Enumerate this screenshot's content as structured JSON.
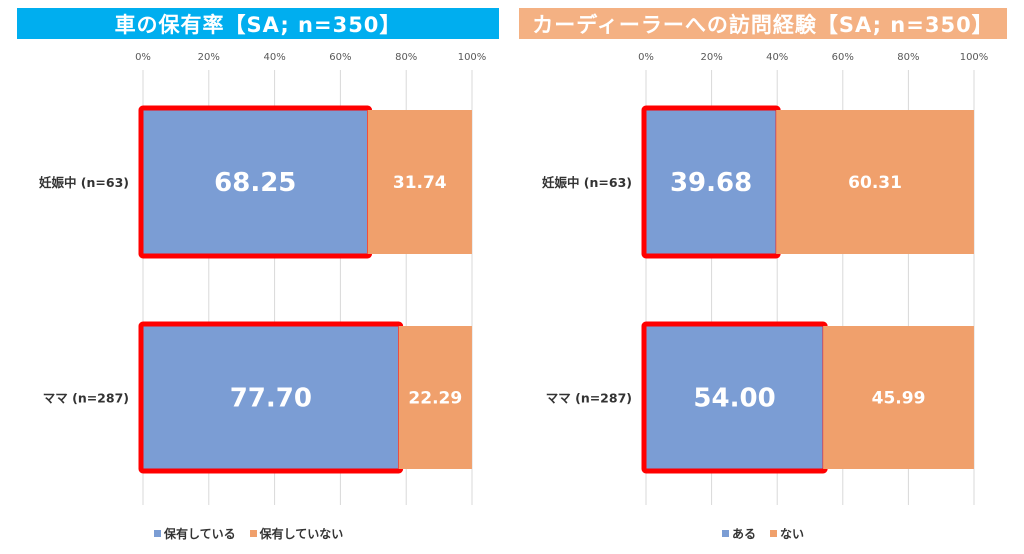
{
  "chart_data": [
    {
      "type": "bar",
      "orientation": "horizontal",
      "stacked": true,
      "title": "車の保有率【SA; n=350】",
      "title_color": "#00AEEF",
      "categories": [
        "妊娠中 (n=63)",
        "ママ (n=287)"
      ],
      "series": [
        {
          "name": "保有している",
          "values": [
            68.25,
            77.7
          ],
          "color": "#7B9DD4"
        },
        {
          "name": "保有していない",
          "values": [
            31.74,
            22.29
          ],
          "color": "#F0A06C"
        }
      ],
      "xlim": [
        0,
        100
      ],
      "x_ticks": [
        "0%",
        "20%",
        "40%",
        "60%",
        "80%",
        "100%"
      ],
      "grid": true,
      "legend_position": "bottom",
      "highlight_series": 0,
      "highlight_color": "#FF0000"
    },
    {
      "type": "bar",
      "orientation": "horizontal",
      "stacked": true,
      "title": "カーディーラーへの訪問経験【SA; n=350】",
      "title_color": "#F4B183",
      "categories": [
        "妊娠中 (n=63)",
        "ママ (n=287)"
      ],
      "series": [
        {
          "name": "ある",
          "values": [
            39.68,
            54.0
          ],
          "color": "#7B9DD4"
        },
        {
          "name": "ない",
          "values": [
            60.31,
            45.99
          ],
          "color": "#F0A06C"
        }
      ],
      "xlim": [
        0,
        100
      ],
      "x_ticks": [
        "0%",
        "20%",
        "40%",
        "60%",
        "80%",
        "100%"
      ],
      "grid": true,
      "legend_position": "bottom",
      "highlight_series": 0,
      "highlight_color": "#FF0000"
    }
  ]
}
